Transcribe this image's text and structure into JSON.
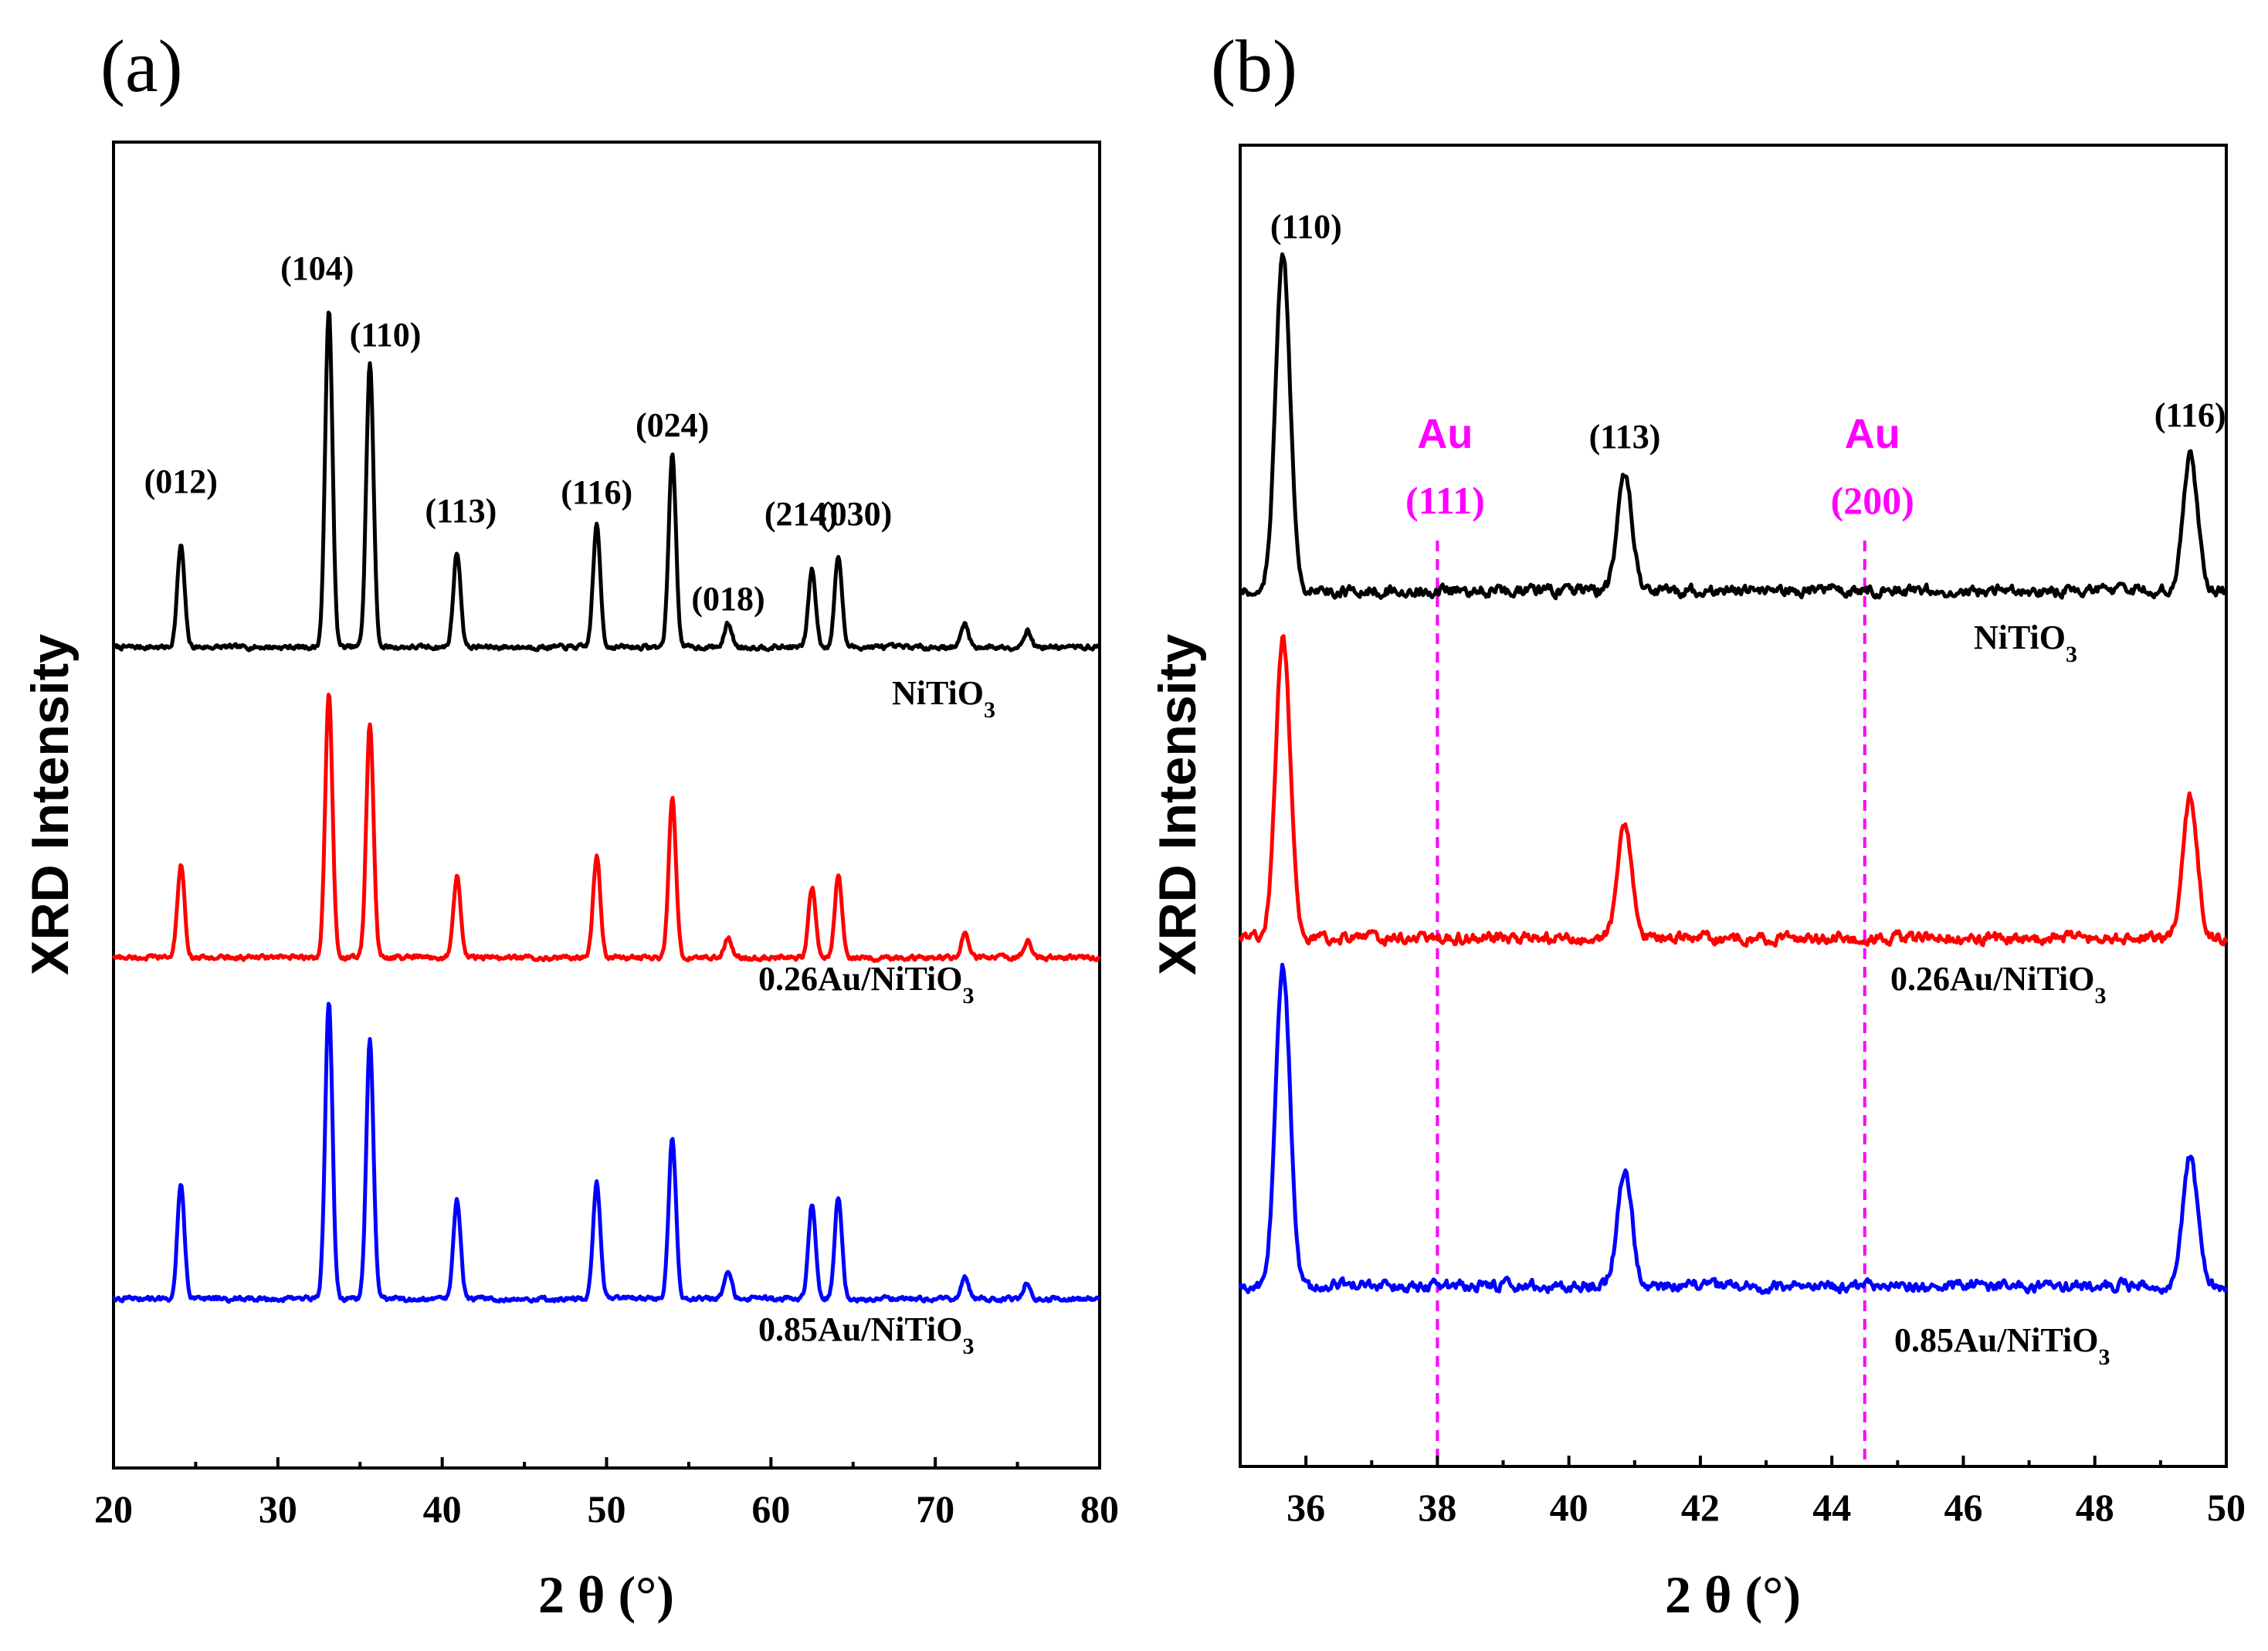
{
  "chart_data": [
    {
      "panel": "(a)",
      "type": "line",
      "xlabel": "2 θ (°)",
      "ylabel": "XRD Intensity",
      "xlim": [
        20,
        80
      ],
      "xticks": [
        20,
        30,
        40,
        50,
        60,
        70,
        80
      ],
      "peaks": [
        {
          "x": 24.1,
          "label": "(012)"
        },
        {
          "x": 33.1,
          "label": "(104)"
        },
        {
          "x": 35.6,
          "label": "(110)"
        },
        {
          "x": 40.9,
          "label": "(113)"
        },
        {
          "x": 49.4,
          "label": "(116)"
        },
        {
          "x": 54.0,
          "label": "(024)"
        },
        {
          "x": 57.4,
          "label": "(018)"
        },
        {
          "x": 62.5,
          "label": "(214)"
        },
        {
          "x": 64.1,
          "label": "(030)"
        },
        {
          "x": 71.8,
          "label": ""
        },
        {
          "x": 75.6,
          "label": ""
        }
      ],
      "series": [
        {
          "name": "NiTiO3",
          "label_main": "NiTiO",
          "label_sub": "3",
          "color": "#000000",
          "intensities": [
            0.3,
            1.0,
            0.84,
            0.28,
            0.36,
            0.57,
            0.07,
            0.23,
            0.27,
            0.07,
            0.05
          ]
        },
        {
          "name": "0.26Au/NiTiO3",
          "label_main": "0.26Au/NiTiO",
          "label_sub": "3",
          "color": "#ff0000",
          "intensities": [
            0.27,
            0.78,
            0.69,
            0.24,
            0.3,
            0.47,
            0.06,
            0.21,
            0.24,
            0.07,
            0.05
          ]
        },
        {
          "name": "0.85Au/NiTiO3",
          "label_main": "0.85Au/NiTiO",
          "label_sub": "3",
          "color": "#0000ff",
          "intensities": [
            0.34,
            0.88,
            0.76,
            0.29,
            0.34,
            0.48,
            0.08,
            0.28,
            0.3,
            0.07,
            0.05
          ]
        }
      ]
    },
    {
      "panel": "(b)",
      "type": "line",
      "xlabel": "2 θ (°)",
      "ylabel": "XRD Intensity",
      "xlim": [
        35,
        50
      ],
      "xticks": [
        36,
        38,
        40,
        42,
        44,
        46,
        48,
        50
      ],
      "peaks": [
        {
          "x": 35.65,
          "label": "(110)"
        },
        {
          "x": 40.85,
          "label": "(113)"
        },
        {
          "x": 49.45,
          "label": "(116)"
        }
      ],
      "reference_lines": [
        {
          "x": 38.0,
          "label": "Au",
          "hkl": "(111)",
          "color": "#ff00ff"
        },
        {
          "x": 44.5,
          "label": "Au",
          "hkl": "(200)",
          "color": "#ff00ff"
        }
      ],
      "series": [
        {
          "name": "NiTiO3",
          "label_main": "NiTiO",
          "label_sub": "3",
          "color": "#000000",
          "intensities": [
            1.0,
            0.35,
            0.41
          ]
        },
        {
          "name": "0.26Au/NiTiO3",
          "label_main": "0.26Au/NiTiO",
          "label_sub": "3",
          "color": "#ff0000",
          "intensities": [
            0.9,
            0.34,
            0.42
          ]
        },
        {
          "name": "0.85Au/NiTiO3",
          "label_main": "0.85Au/NiTiO",
          "label_sub": "3",
          "color": "#0000ff",
          "intensities": [
            0.95,
            0.34,
            0.39
          ]
        }
      ]
    }
  ]
}
